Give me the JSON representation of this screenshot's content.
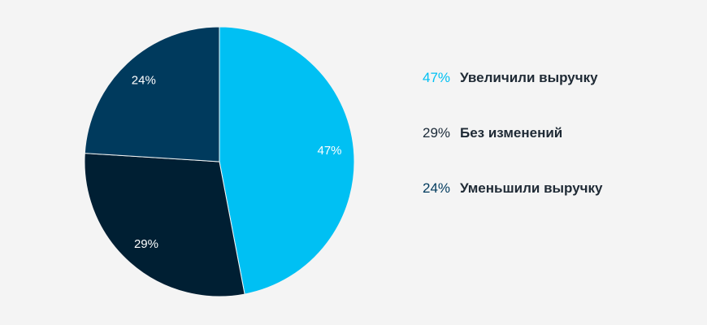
{
  "chart_data": {
    "type": "pie",
    "title": "",
    "slices": [
      {
        "label": "Увеличили выручку",
        "value": 47,
        "value_label": "47%",
        "color": "#00c0f3"
      },
      {
        "label": "Без изменений",
        "value": 29,
        "value_label": "29%",
        "color": "#001f33"
      },
      {
        "label": "Уменьшили выручку",
        "value": 24,
        "value_label": "24%",
        "color": "#003a5d"
      }
    ],
    "legend": {
      "placement": "right",
      "items": [
        {
          "pct": "47%",
          "label": "Увеличили выручку",
          "pct_color": "#00c0f3"
        },
        {
          "pct": "29%",
          "label": "Без изменений",
          "pct_color": "#1b2a38"
        },
        {
          "pct": "24%",
          "label": "Уменьшили выручку",
          "pct_color": "#003a5d"
        }
      ]
    }
  }
}
